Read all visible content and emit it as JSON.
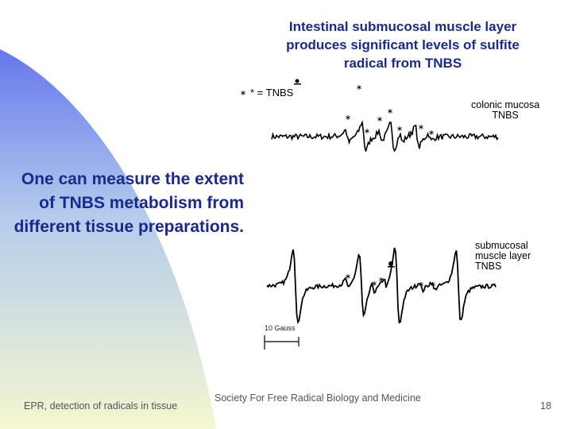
{
  "title": [
    "Intestinal submucosal muscle layer",
    "produces significant levels of sulfite",
    "radical from TNBS"
  ],
  "side_text": [
    "One can measure the extent",
    "of TNBS metabolism from",
    "different tissue preparations."
  ],
  "legend": "* = TNBS",
  "labels": {
    "colonic": [
      "colonic mucosa",
      "TNBS"
    ],
    "submucosal": [
      "submucosal",
      "muscle layer",
      "TNBS"
    ]
  },
  "scale_label": "10 Gauss",
  "footer": {
    "left": "EPR, detection of radicals in tissue",
    "center": "Society For Free Radical Biology and Medicine",
    "page": "18"
  }
}
